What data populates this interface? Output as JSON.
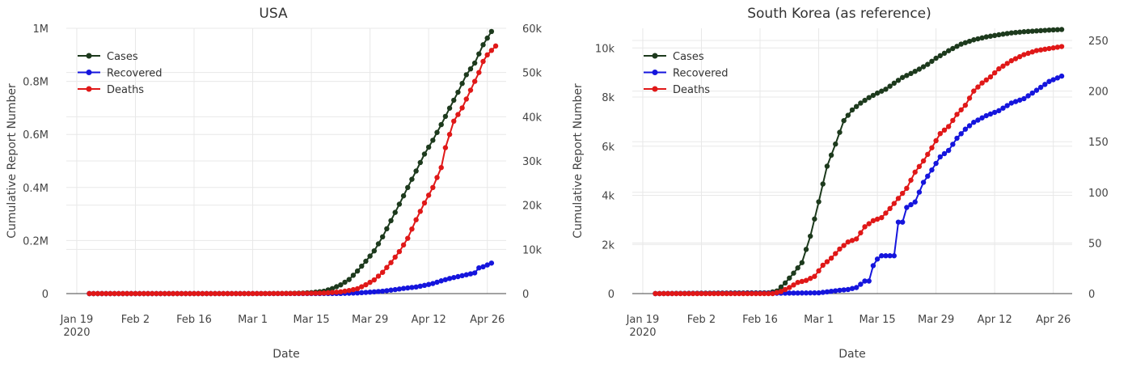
{
  "chart_data": [
    {
      "type": "line",
      "title": "USA",
      "xlabel": "Date",
      "ylabel": "Cumulative Report Number",
      "x_ticks": [
        "Jan 19",
        "Feb 2",
        "Feb 16",
        "Mar 1",
        "Mar 15",
        "Mar 29",
        "Apr 12",
        "Apr 26"
      ],
      "x_tick_year": "2020",
      "y_ticks_left": [
        "0",
        "0.2M",
        "0.4M",
        "0.6M",
        "0.8M",
        "1M"
      ],
      "y_ticks_right": [
        "0",
        "10k",
        "20k",
        "30k",
        "40k",
        "50k",
        "60k"
      ],
      "ylim_left": [
        0,
        1000000
      ],
      "ylim_right": [
        0,
        60000
      ],
      "legend_position": "top-left",
      "grid": true,
      "series": [
        {
          "name": "Cases",
          "axis": "left",
          "color": "#1d3a1d",
          "points": [
            [
              "Jan 22",
              0
            ],
            [
              "Feb 1",
              8
            ],
            [
              "Feb 15",
              15
            ],
            [
              "Mar 1",
              75
            ],
            [
              "Mar 8",
              540
            ],
            [
              "Mar 12",
              1600
            ],
            [
              "Mar 15",
              3500
            ],
            [
              "Mar 18",
              9000
            ],
            [
              "Mar 20",
              19000
            ],
            [
              "Mar 22",
              33000
            ],
            [
              "Mar 24",
              53000
            ],
            [
              "Mar 26",
              85000
            ],
            [
              "Mar 28",
              122000
            ],
            [
              "Mar 30",
              161000
            ],
            [
              "Apr 1",
              214000
            ],
            [
              "Apr 3",
              275000
            ],
            [
              "Apr 5",
              337000
            ],
            [
              "Apr 7",
              400000
            ],
            [
              "Apr 9",
              462000
            ],
            [
              "Apr 11",
              526000
            ],
            [
              "Apr 13",
              578000
            ],
            [
              "Apr 15",
              637000
            ],
            [
              "Apr 17",
              699000
            ],
            [
              "Apr 19",
              759000
            ],
            [
              "Apr 21",
              825000
            ],
            [
              "Apr 23",
              869000
            ],
            [
              "Apr 25",
              938000
            ],
            [
              "Apr 27",
              988000
            ]
          ]
        },
        {
          "name": "Recovered",
          "axis": "left",
          "color": "#1515dd",
          "points": [
            [
              "Jan 22",
              0
            ],
            [
              "Mar 10",
              100
            ],
            [
              "Mar 17",
              200
            ],
            [
              "Mar 22",
              500
            ],
            [
              "Mar 26",
              2500
            ],
            [
              "Mar 29",
              5500
            ],
            [
              "Apr 1",
              9000
            ],
            [
              "Apr 4",
              15000
            ],
            [
              "Apr 6",
              19500
            ],
            [
              "Apr 9",
              25000
            ],
            [
              "Apr 11",
              31000
            ],
            [
              "Apr 13",
              38000
            ],
            [
              "Apr 15",
              48000
            ],
            [
              "Apr 17",
              57000
            ],
            [
              "Apr 19",
              64000
            ],
            [
              "Apr 21",
              71000
            ],
            [
              "Apr 23",
              78000
            ],
            [
              "Apr 24",
              97000
            ],
            [
              "Apr 25",
              101000
            ],
            [
              "Apr 27",
              115000
            ]
          ]
        },
        {
          "name": "Deaths",
          "axis": "right",
          "color": "#e01818",
          "points": [
            [
              "Jan 22",
              0
            ],
            [
              "Feb 29",
              1
            ],
            [
              "Mar 10",
              28
            ],
            [
              "Mar 15",
              60
            ],
            [
              "Mar 18",
              120
            ],
            [
              "Mar 20",
              250
            ],
            [
              "Mar 22",
              400
            ],
            [
              "Mar 24",
              700
            ],
            [
              "Mar 26",
              1100
            ],
            [
              "Mar 28",
              2000
            ],
            [
              "Mar 30",
              3100
            ],
            [
              "Apr 1",
              4800
            ],
            [
              "Apr 3",
              7000
            ],
            [
              "Apr 5",
              9500
            ],
            [
              "Apr 7",
              12500
            ],
            [
              "Apr 9",
              16700
            ],
            [
              "Apr 11",
              20500
            ],
            [
              "Apr 13",
              24000
            ],
            [
              "Apr 15",
              28500
            ],
            [
              "Apr 16",
              33000
            ],
            [
              "Apr 17",
              36000
            ],
            [
              "Apr 18",
              39000
            ],
            [
              "Apr 19",
              40500
            ],
            [
              "Apr 20",
              42000
            ],
            [
              "Apr 22",
              46000
            ],
            [
              "Apr 24",
              50000
            ],
            [
              "Apr 25",
              52500
            ],
            [
              "Apr 26",
              54000
            ],
            [
              "Apr 27",
              55000
            ],
            [
              "Apr 28",
              56000
            ]
          ]
        }
      ]
    },
    {
      "type": "line",
      "title": "South Korea (as reference)",
      "xlabel": "Date",
      "ylabel": "Cumulative Report Number",
      "x_ticks": [
        "Jan 19",
        "Feb 2",
        "Feb 16",
        "Mar 1",
        "Mar 15",
        "Mar 29",
        "Apr 12",
        "Apr 26"
      ],
      "x_tick_year": "2020",
      "y_ticks_left": [
        "0",
        "2k",
        "4k",
        "6k",
        "8k",
        "10k"
      ],
      "y_ticks_right": [
        "0",
        "50",
        "100",
        "150",
        "200",
        "250"
      ],
      "ylim_left": [
        0,
        10800
      ],
      "ylim_right": [
        0,
        262
      ],
      "legend_position": "top-left",
      "grid": true,
      "series": [
        {
          "name": "Cases",
          "axis": "left",
          "color": "#1d3a1d",
          "points": [
            [
              "Jan 22",
              1
            ],
            [
              "Feb 10",
              27
            ],
            [
              "Feb 18",
              31
            ],
            [
              "Feb 20",
              104
            ],
            [
              "Feb 22",
              433
            ],
            [
              "Feb 24",
              833
            ],
            [
              "Feb 26",
              1261
            ],
            [
              "Feb 28",
              2337
            ],
            [
              "Mar 1",
              3736
            ],
            [
              "Mar 3",
              5186
            ],
            [
              "Mar 5",
              6088
            ],
            [
              "Mar 7",
              7041
            ],
            [
              "Mar 9",
              7478
            ],
            [
              "Mar 11",
              7755
            ],
            [
              "Mar 13",
              7979
            ],
            [
              "Mar 15",
              8162
            ],
            [
              "Mar 17",
              8320
            ],
            [
              "Mar 19",
              8565
            ],
            [
              "Mar 21",
              8799
            ],
            [
              "Mar 23",
              8961
            ],
            [
              "Mar 25",
              9137
            ],
            [
              "Mar 27",
              9332
            ],
            [
              "Mar 29",
              9583
            ],
            [
              "Apr 1",
              9887
            ],
            [
              "Apr 4",
              10156
            ],
            [
              "Apr 7",
              10331
            ],
            [
              "Apr 10",
              10450
            ],
            [
              "Apr 13",
              10537
            ],
            [
              "Apr 16",
              10613
            ],
            [
              "Apr 19",
              10661
            ],
            [
              "Apr 22",
              10694
            ],
            [
              "Apr 25",
              10728
            ],
            [
              "Apr 28",
              10752
            ]
          ]
        },
        {
          "name": "Recovered",
          "axis": "left",
          "color": "#1515dd",
          "points": [
            [
              "Jan 22",
              0
            ],
            [
              "Feb 20",
              16
            ],
            [
              "Mar 1",
              30
            ],
            [
              "Mar 6",
              135
            ],
            [
              "Mar 8",
              166
            ],
            [
              "Mar 10",
              247
            ],
            [
              "Mar 12",
              510
            ],
            [
              "Mar 13",
              510
            ],
            [
              "Mar 14",
              1137
            ],
            [
              "Mar 15",
              1407
            ],
            [
              "Mar 16",
              1540
            ],
            [
              "Mar 17",
              1540
            ],
            [
              "Mar 18",
              1540
            ],
            [
              "Mar 19",
              1540
            ],
            [
              "Mar 20",
              2909
            ],
            [
              "Mar 21",
              2909
            ],
            [
              "Mar 22",
              3507
            ],
            [
              "Mar 24",
              3730
            ],
            [
              "Mar 26",
              4528
            ],
            [
              "Mar 28",
              5033
            ],
            [
              "Mar 30",
              5567
            ],
            [
              "Apr 1",
              5828
            ],
            [
              "Apr 3",
              6325
            ],
            [
              "Apr 5",
              6694
            ],
            [
              "Apr 7",
              6973
            ],
            [
              "Apr 10",
              7243
            ],
            [
              "Apr 13",
              7447
            ],
            [
              "Apr 16",
              7757
            ],
            [
              "Apr 19",
              7937
            ],
            [
              "Apr 22",
              8277
            ],
            [
              "Apr 25",
              8635
            ],
            [
              "Apr 28",
              8854
            ]
          ]
        },
        {
          "name": "Deaths",
          "axis": "right",
          "color": "#e01818",
          "points": [
            [
              "Jan 22",
              0
            ],
            [
              "Feb 19",
              0
            ],
            [
              "Feb 21",
              2
            ],
            [
              "Feb 23",
              6
            ],
            [
              "Feb 25",
              11
            ],
            [
              "Feb 27",
              13
            ],
            [
              "Feb 29",
              17
            ],
            [
              "Mar 2",
              28
            ],
            [
              "Mar 4",
              35
            ],
            [
              "Mar 6",
              44
            ],
            [
              "Mar 8",
              51
            ],
            [
              "Mar 10",
              54
            ],
            [
              "Mar 12",
              66
            ],
            [
              "Mar 14",
              72
            ],
            [
              "Mar 16",
              75
            ],
            [
              "Mar 18",
              84
            ],
            [
              "Mar 20",
              94
            ],
            [
              "Mar 22",
              104
            ],
            [
              "Mar 24",
              120
            ],
            [
              "Mar 26",
              131
            ],
            [
              "Mar 28",
              144
            ],
            [
              "Mar 30",
              158
            ],
            [
              "Apr 1",
              165
            ],
            [
              "Apr 3",
              177
            ],
            [
              "Apr 5",
              186
            ],
            [
              "Apr 7",
              200
            ],
            [
              "Apr 9",
              208
            ],
            [
              "Apr 11",
              214
            ],
            [
              "Apr 13",
              222
            ],
            [
              "Apr 16",
              230
            ],
            [
              "Apr 19",
              236
            ],
            [
              "Apr 22",
              240
            ],
            [
              "Apr 25",
              242
            ],
            [
              "Apr 28",
              244
            ]
          ]
        }
      ]
    }
  ]
}
